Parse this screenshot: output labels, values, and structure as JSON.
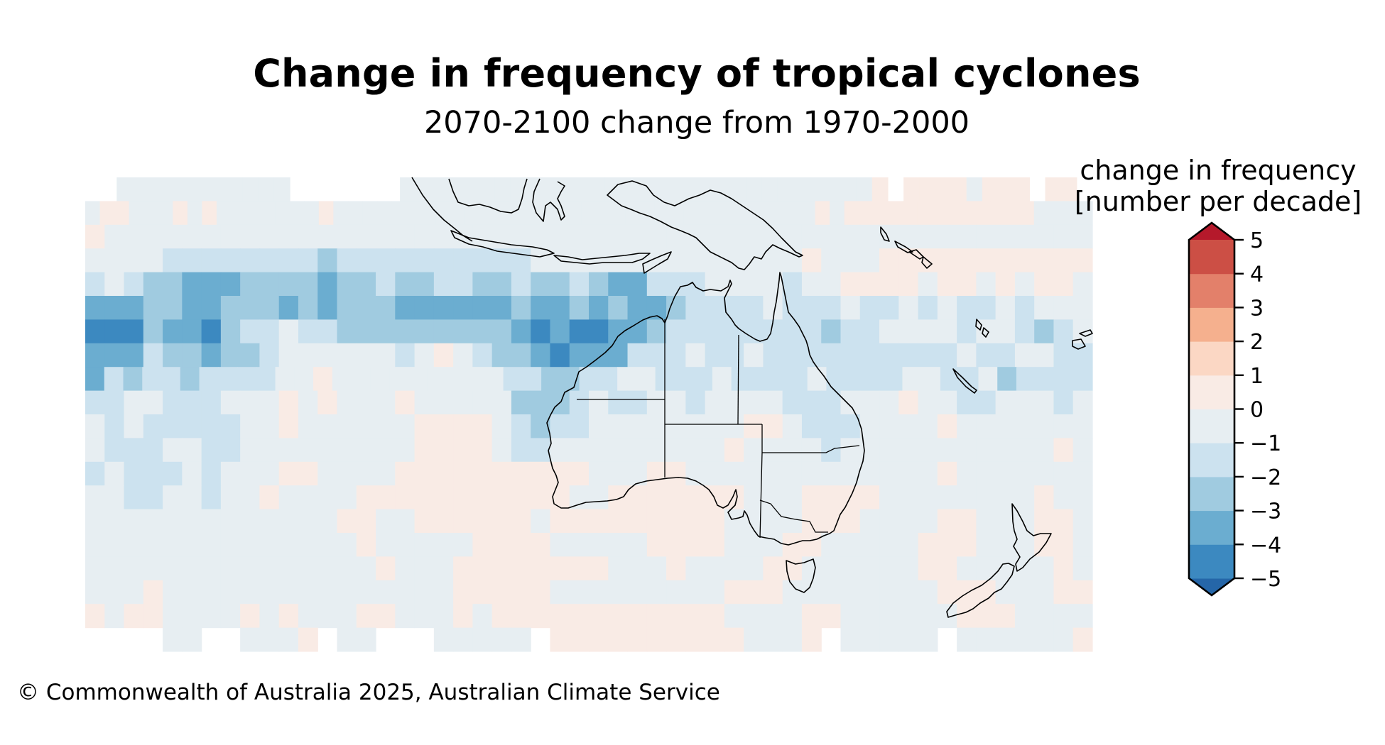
{
  "title": "Change in frequency of tropical cyclones",
  "subtitle": "2070-2100 change from 1970-2000",
  "colorbar": {
    "title_line1": "change in frequency",
    "title_line2": "[number per decade]",
    "levels": [
      -5,
      -4,
      -3,
      -2,
      -1,
      0,
      1,
      2,
      3,
      4,
      5
    ],
    "tick_labels": [
      "−5",
      "−4",
      "−3",
      "−2",
      "−1",
      "0",
      "1",
      "2",
      "3",
      "4",
      "5"
    ],
    "colors": [
      "#3c89c0",
      "#6badd0",
      "#a0cbe0",
      "#cce2ef",
      "#e7eef2",
      "#f9ebe5",
      "#fbd7c4",
      "#f5b08e",
      "#e3806a",
      "#cc4f45"
    ],
    "under_color": "#2566a8",
    "over_color": "#b5192b",
    "extend": "both"
  },
  "footer": "© Commonwealth of Australia 2025, Australian Climate Service",
  "chart_data": {
    "type": "heatmap",
    "title": "Change in frequency of tropical cyclones",
    "subtitle": "2070-2100 change from 1970-2000",
    "colorbar_label": "change in frequency [number per decade]",
    "region": "Australia, Indian Ocean and South-West Pacific",
    "value_range": [
      -5,
      5
    ],
    "legend_position": "right",
    "bin_key": {
      ".": "no data",
      "a": "0 to 1",
      "b": "-1 to 0",
      "c": "-2 to -1",
      "d": "-3 to -2",
      "e": "-4 to -3",
      "f": "-5 to -4"
    },
    "grid_rows": [
      "..bbbbbbbbbbb.......bbbbbbbbbbbbbbbbbbbbbbbbbbbbbba.aaaabaaa.aa.",
      "baabbbababbbbbbbabbbbbbbbbbbbbbbbbbbbbbbbbbbbbbbbbabaaaaaaaaaaaaabbbb",
      "abbbbbbbbbbbbbbbbbbbbbbbbbbbbbbbbbbbbbbbbbbbbbbbbbbb",
      "bbbbccccccccdccccccccccbbbbbbbbbbbbbbabbbaaaaaaaaaaa",
      "cbcddeeeddddeddcddccddcddcdeecccbbbbcbbaaaabaababaab",
      "eeeddeedddededddeeeeeedeededeedccccbcccbccbcbccbcbbb",
      "fffdeefdccbccdddddddddefeffeedccccccccdccbbbbcbbcdcb",
      "eeecddeddcbbbbbbcbabcddefeeecccbccbccccccccccbccbbcc",
      "ecdccdccccbbabbbbbbbbbccddccbbcccbccccbccccbbccbdcccc",
      "ccbbcccbbbababbbabbbbbdddcbccbbcbbbbcccbbbabbccbbbcb",
      "bcbcccccbbabbbbbbaaaabcdccbbbbbbbbaabcccbbbbabbbbbbb",
      "bcccbbccbbbbbbbbbaaaabccbbbbbbbbbabbbbcbbbbbbbbbbbab",
      "cbcccbcbbbaabbbbaaaaaaaaaabbbaabbbbbbbbbbbbbabbbbbbb",
      "bbccbbcbbabbbbaaaaaaaaaaabbaaaaaaabbbaaaabbbbbbbbabb",
      "bbbbbbbbbbbbbaabbaaaaaabaaaaaaaaabbbbaaabbbbaabbbaab",
      "bbbbbbbbbbbbbbabbbbbaaaabbbbbaaaabbbaabbbbbaaabbbaab",
      "bbbbbbbbbbbbbbbabbbaaaaaaaabbbabbbbaabbbbbbaabbbbbab",
      "bbbabbbbbbbbbbbbbbbaaaaabbbbbbbbbaaabbbbbbbbaaabbbaa",
      "abaabbbbababbbaabbbabaaaaaaaaaaaabbbbaabbbbbbaaabbbb",
      "....bb..bbba.bb...bbbbb.aaaaaaaaaabbba.bbbbb.bbbbbba"
    ]
  }
}
